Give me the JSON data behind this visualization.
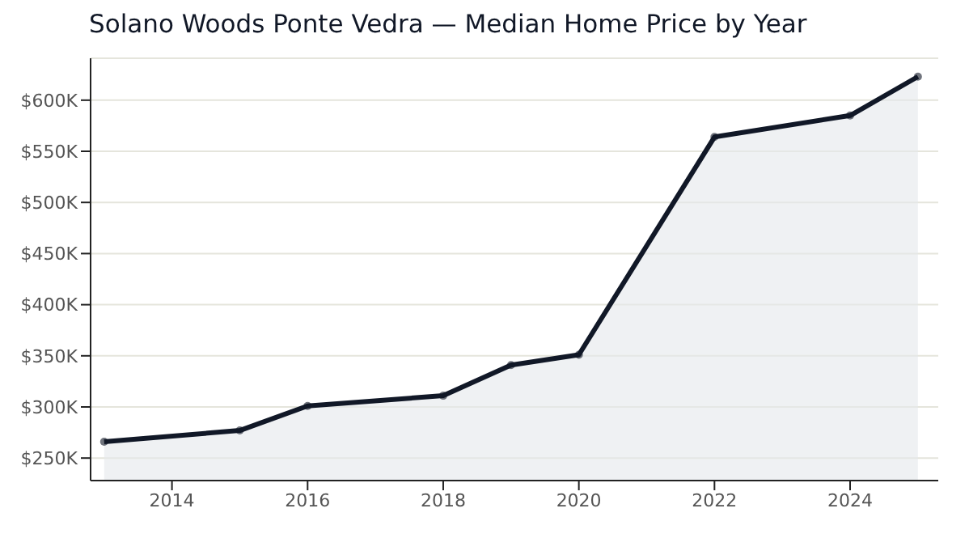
{
  "chart_data": {
    "type": "area",
    "title": "Solano Woods Ponte Vedra — Median Home Price by Year",
    "x": [
      2013,
      2015,
      2016,
      2018,
      2019,
      2020,
      2022,
      2024,
      2025
    ],
    "series": [
      {
        "color": "#111827",
        "values": [
          266000,
          277000,
          301000,
          311000,
          341000,
          351000,
          564000,
          585000,
          623000
        ]
      }
    ],
    "xlim": [
      2012.8,
      2025.3
    ],
    "xticks": [
      2014,
      2016,
      2018,
      2020,
      2022,
      2024
    ],
    "ylim": [
      228000,
      641000
    ],
    "yticks": [
      {
        "value": 250000,
        "label": "$250K"
      },
      {
        "value": 300000,
        "label": "$300K"
      },
      {
        "value": 350000,
        "label": "$350K"
      },
      {
        "value": 400000,
        "label": "$400K"
      },
      {
        "value": 450000,
        "label": "$450K"
      },
      {
        "value": 500000,
        "label": "$500K"
      },
      {
        "value": 550000,
        "label": "$550K"
      },
      {
        "value": 600000,
        "label": "$600K"
      }
    ],
    "grid": "y",
    "marker": "circle",
    "line_style": "solid"
  }
}
